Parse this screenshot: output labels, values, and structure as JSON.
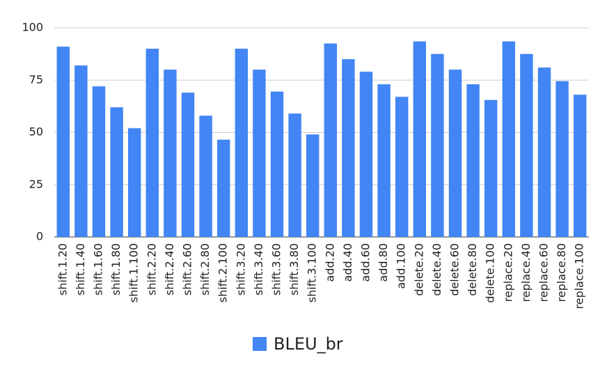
{
  "chart_data": {
    "type": "bar",
    "categories": [
      "shift.1.20",
      "shift.1.40",
      "shift.1.60",
      "shift.1.80",
      "shift.1.100",
      "shift.2.20",
      "shift.2.40",
      "shift.2.60",
      "shift.2.80",
      "shift.2.100",
      "shift.3.20",
      "shift.3.40",
      "shift.3.60",
      "shift.3.80",
      "shift.3.100",
      "add.20",
      "add.40",
      "add.60",
      "add.80",
      "add.100",
      "delete.20",
      "delete.40",
      "delete.60",
      "delete.80",
      "delete.100",
      "replace.20",
      "replace.40",
      "replace.60",
      "replace.80",
      "replace.100"
    ],
    "series": [
      {
        "name": "BLEU_br",
        "color": "#4285f4",
        "values": [
          91,
          82,
          72,
          62,
          52,
          90,
          80,
          69,
          58,
          46.5,
          90,
          80,
          69.5,
          59,
          49,
          92.5,
          85,
          79,
          73,
          67,
          93.5,
          87.5,
          80,
          73,
          65.5,
          93.5,
          87.5,
          81,
          74.5,
          68
        ]
      }
    ],
    "ylim": [
      0,
      100
    ],
    "yticks": [
      0,
      25,
      50,
      75,
      100
    ],
    "grid": true,
    "legend": "bottom"
  }
}
